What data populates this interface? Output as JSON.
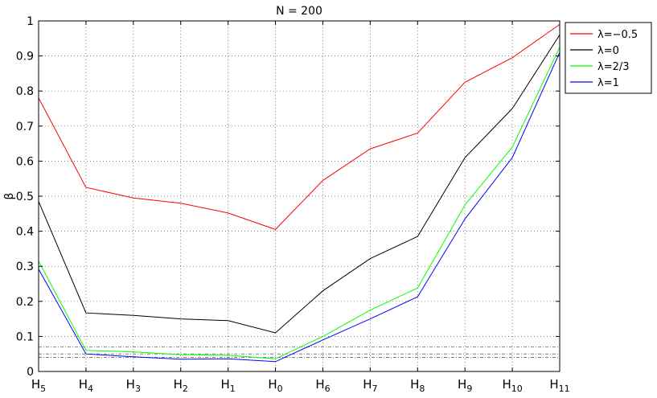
{
  "chart_data": {
    "type": "line",
    "title": "N = 200",
    "ylabel": "β",
    "xlabel": "",
    "categories": [
      {
        "base": "H",
        "sub": "5"
      },
      {
        "base": "H",
        "sub": "4"
      },
      {
        "base": "H",
        "sub": "3"
      },
      {
        "base": "H",
        "sub": "2"
      },
      {
        "base": "H",
        "sub": "1"
      },
      {
        "base": "H",
        "sub": "0"
      },
      {
        "base": "H",
        "sub": "6"
      },
      {
        "base": "H",
        "sub": "7"
      },
      {
        "base": "H",
        "sub": "8"
      },
      {
        "base": "H",
        "sub": "9"
      },
      {
        "base": "H",
        "sub": "10"
      },
      {
        "base": "H",
        "sub": "11"
      }
    ],
    "ylim": [
      0,
      1
    ],
    "yticks": [
      "0",
      "0.1",
      "0.2",
      "0.3",
      "0.4",
      "0.5",
      "0.6",
      "0.7",
      "0.8",
      "0.9",
      "1"
    ],
    "grid": true,
    "legend_position": "outside top-right",
    "series": [
      {
        "name": "λ=−0.5",
        "color": "#ff0000",
        "values": [
          0.78,
          0.525,
          0.495,
          0.48,
          0.452,
          0.405,
          0.545,
          0.635,
          0.68,
          0.825,
          0.895,
          0.99
        ]
      },
      {
        "name": "λ=0",
        "color": "#000000",
        "values": [
          0.485,
          0.167,
          0.16,
          0.15,
          0.145,
          0.11,
          0.23,
          0.322,
          0.385,
          0.61,
          0.75,
          0.96
        ]
      },
      {
        "name": "λ=2/3",
        "color": "#00ff00",
        "values": [
          0.315,
          0.06,
          0.056,
          0.048,
          0.046,
          0.036,
          0.1,
          0.175,
          0.238,
          0.475,
          0.64,
          0.925
        ]
      },
      {
        "name": "λ=1",
        "color": "#0000ff",
        "values": [
          0.292,
          0.05,
          0.042,
          0.035,
          0.036,
          0.028,
          0.09,
          0.15,
          0.213,
          0.435,
          0.61,
          0.91
        ]
      }
    ],
    "reference_lines": [
      0.07,
      0.05,
      0.04
    ]
  }
}
